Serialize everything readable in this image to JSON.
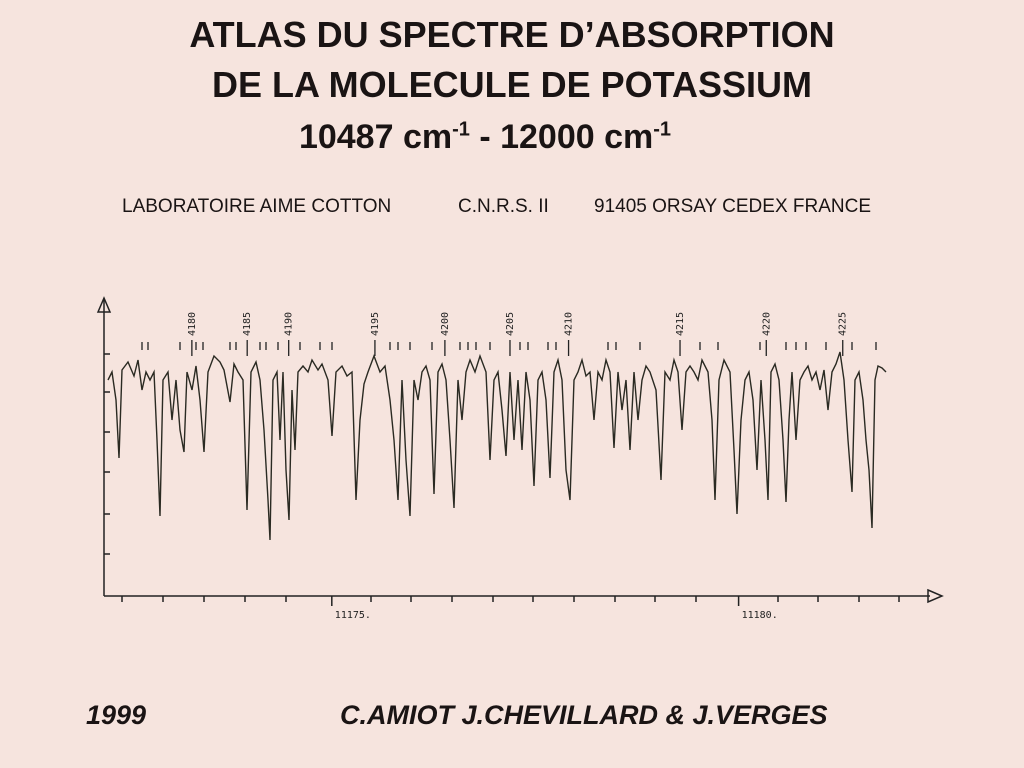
{
  "title": [
    "ATLAS DU SPECTRE D’ABSORPTION",
    "DE LA MOLECULE DE POTASSIUM"
  ],
  "range": {
    "from": {
      "value": "10487",
      "unit": "cm",
      "exponent": "-1"
    },
    "separator": "-",
    "to": {
      "value": "12000",
      "unit": "cm",
      "exponent": "-1"
    }
  },
  "affiliation": [
    "LABORATOIRE AIME COTTON",
    "C.N.R.S. II",
    "91405 ORSAY CEDEX  FRANCE"
  ],
  "chart": {
    "xlim": [
      11172.2,
      11182.5
    ],
    "xticks": [
      {
        "value": 11175,
        "label": "11175."
      },
      {
        "value": 11180,
        "label": "11180."
      }
    ],
    "line_labels": [
      {
        "label": 4180,
        "x": 11173.28
      },
      {
        "label": 4185,
        "x": 11173.96
      },
      {
        "label": 4190,
        "x": 11174.47
      },
      {
        "label": 4195,
        "x": 11175.53
      },
      {
        "label": 4200,
        "x": 11176.39
      },
      {
        "label": 4205,
        "x": 11177.19
      },
      {
        "label": 4210,
        "x": 11177.91
      },
      {
        "label": 4215,
        "x": 11179.28
      },
      {
        "label": 4220,
        "x": 11180.34
      },
      {
        "label": 4225,
        "x": 11181.28
      }
    ]
  },
  "footer": {
    "year": "1999",
    "authors": "C.AMIOT J.CHEVILLARD & J.VERGES"
  }
}
